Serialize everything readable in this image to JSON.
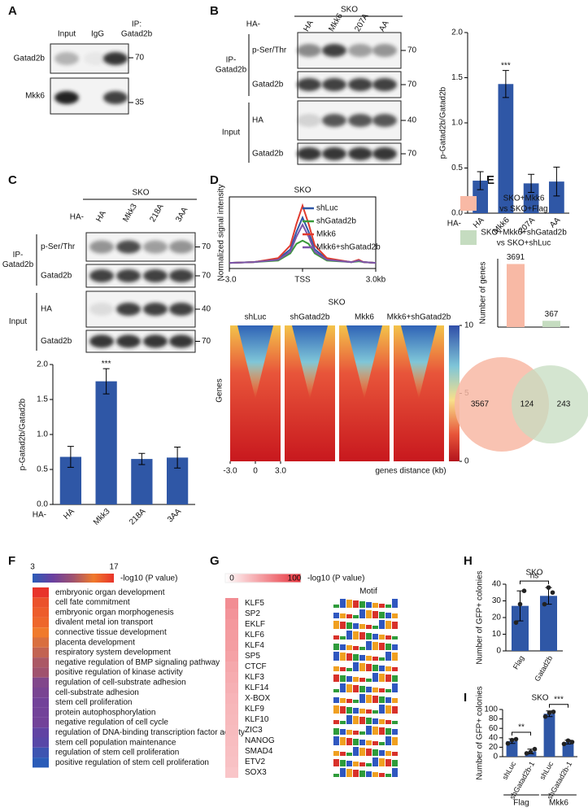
{
  "panel_labels": [
    "A",
    "B",
    "C",
    "D",
    "E",
    "F",
    "G",
    "H",
    "I"
  ],
  "blot_a": {
    "lanes": [
      "Input",
      "IgG"
    ],
    "ip_label": [
      "IP:",
      "Gatad2b"
    ],
    "rows": [
      "Gatad2b",
      "Mkk6"
    ],
    "markers": [
      70,
      35
    ]
  },
  "blot_b": {
    "prefix": "HA-",
    "group": "SKO",
    "lanes": [
      "HA",
      "Mkk6",
      "207A",
      "AA"
    ],
    "sections": [
      {
        "name": [
          "IP-",
          "Gatad2b"
        ],
        "rows": [
          "p-Ser/Thr",
          "Gatad2b"
        ]
      },
      {
        "name": [
          "Input"
        ],
        "rows": [
          "HA",
          "Gatad2b"
        ]
      }
    ],
    "markers": [
      70,
      70,
      40,
      70
    ]
  },
  "blot_c": {
    "prefix": "HA-",
    "group": "SKO",
    "lanes": [
      "HA",
      "Mkk3",
      "218A",
      "3AA"
    ],
    "sections": [
      {
        "name": [
          "IP-",
          "Gatad2b"
        ],
        "rows": [
          "p-Ser/Thr",
          "Gatad2b"
        ]
      },
      {
        "name": [
          "Input"
        ],
        "rows": [
          "HA",
          "Gatad2b"
        ]
      }
    ],
    "markers": [
      70,
      70,
      40,
      70
    ]
  },
  "chart_data": [
    {
      "type": "bar",
      "ylabel": "p-Gatad2b/Gatad2b",
      "x_prefix": "HA-",
      "categories": [
        "HA",
        "Mkk6",
        "207A",
        "AA"
      ],
      "values": [
        0.36,
        1.43,
        0.33,
        0.35
      ],
      "errors": [
        0.1,
        0.15,
        0.1,
        0.16
      ],
      "significance": [
        null,
        "***",
        null,
        null
      ],
      "color": "#2f57a6",
      "ylim": [
        0,
        2
      ],
      "yticks": [
        {
          "value": 0,
          "label": "0.0"
        },
        {
          "value": 0.5,
          "label": "0.5"
        },
        {
          "value": 1,
          "label": "1.0"
        },
        {
          "value": 1.5,
          "label": "1.5"
        },
        {
          "value": 2,
          "label": "2.0"
        }
      ]
    },
    {
      "type": "bar",
      "ylabel": "p-Gatad2b/Gatad2b",
      "x_prefix": "HA-",
      "categories": [
        "HA",
        "Mkk3",
        "218A",
        "3AA"
      ],
      "values": [
        0.68,
        1.76,
        0.65,
        0.67
      ],
      "errors": [
        0.15,
        0.18,
        0.08,
        0.15
      ],
      "significance": [
        null,
        "***",
        null,
        null
      ],
      "color": "#2f57a6",
      "ylim": [
        0,
        2
      ],
      "yticks": [
        {
          "value": 0,
          "label": "0.0"
        },
        {
          "value": 0.5,
          "label": "0.5"
        },
        {
          "value": 1,
          "label": "1.0"
        },
        {
          "value": 1.5,
          "label": "1.5"
        },
        {
          "value": 2,
          "label": "2.0"
        }
      ]
    },
    {
      "type": "line",
      "title": "SKO",
      "ylabel": "Normalized signal intensity",
      "x": [
        -3,
        -2,
        -1,
        -0.5,
        -0.25,
        0,
        0.25,
        0.5,
        1,
        2,
        2.3,
        2.5,
        3
      ],
      "xlim": [
        -3,
        3
      ],
      "xticks": [
        {
          "value": -3,
          "label": "-3.0"
        },
        {
          "value": 0,
          "label": "TSS"
        },
        {
          "value": 3,
          "label": "3.0kb"
        }
      ],
      "ylim": [
        1.5,
        10.5
      ],
      "legend": "upper right",
      "series": [
        {
          "name": "shLuc",
          "color": "#2f57a6",
          "values": [
            2.2,
            2.3,
            2.7,
            3.9,
            6.1,
            7.9,
            6.1,
            3.9,
            2.7,
            2.3,
            2.5,
            2.3,
            2.2
          ]
        },
        {
          "name": "shGatad2b",
          "color": "#3a9a3a",
          "values": [
            2.2,
            2.3,
            2.5,
            3.4,
            4.6,
            5.0,
            4.6,
            3.4,
            2.5,
            2.3,
            2.4,
            2.3,
            2.2
          ]
        },
        {
          "name": "Mkk6",
          "color": "#e03a2e",
          "values": [
            2.2,
            2.3,
            2.8,
            4.4,
            7.1,
            9.4,
            7.1,
            4.4,
            2.8,
            2.3,
            2.6,
            2.3,
            2.2
          ]
        },
        {
          "name": "Mkk6+shGatad2b",
          "color": "#7a55a8",
          "values": [
            2.2,
            2.3,
            2.6,
            3.6,
            5.5,
            7.0,
            5.5,
            3.6,
            2.6,
            2.3,
            2.5,
            2.3,
            2.2
          ]
        }
      ]
    },
    {
      "type": "bar",
      "ylabel": "Number of genes",
      "categories": [
        null,
        null
      ],
      "values": [
        3691,
        367
      ],
      "colors": [
        "#f8b9a5",
        "#c5dcc0"
      ],
      "show_values": true,
      "ylim": [
        0,
        4000
      ],
      "legend_entries": [
        [
          "SKO+Mkk6",
          "vs SKO+Flag"
        ],
        [
          "SKO+Mkk6+shGatad2b",
          "vs SKO+shLuc"
        ]
      ]
    },
    {
      "type": "bar",
      "title": "SKO",
      "ylabel": "Number of GFP+ colonies",
      "categories": [
        "Flag",
        "Gatad2b"
      ],
      "values": [
        27,
        33
      ],
      "errors": [
        9,
        5
      ],
      "points": [
        [
          17,
          28,
          36
        ],
        [
          28,
          38,
          35
        ]
      ],
      "significance": [
        null,
        "ns"
      ],
      "significance_brackets": true,
      "color": "#2f57a6",
      "ylim": [
        0,
        40
      ],
      "yticks": [
        0,
        10,
        20,
        30,
        40
      ]
    },
    {
      "type": "bar",
      "title": "SKO",
      "ylabel": "Number of GFP+ colonies",
      "categories": [
        "shLuc",
        "shGatad2b-1",
        "shLuc",
        "shGatad2b-1"
      ],
      "values": [
        33,
        11,
        91,
        31
      ],
      "errors": [
        5,
        5,
        6,
        4
      ],
      "points": [
        [
          28,
          35,
          37
        ],
        [
          7,
          10,
          16
        ],
        [
          85,
          93,
          95
        ],
        [
          27,
          34,
          31
        ]
      ],
      "significance": [
        null,
        "**",
        null,
        "***"
      ],
      "significance_brackets": true,
      "groups": [
        "Flag",
        "Mkk6"
      ],
      "color": "#2f57a6",
      "ylim": [
        0,
        100
      ],
      "yticks": [
        0,
        20,
        40,
        60,
        80,
        100
      ]
    }
  ],
  "heatmap": {
    "title": "SKO",
    "columns": [
      "shLuc",
      "shGatad2b",
      "Mkk6",
      "Mkk6+shGatad2b"
    ],
    "ylabel": "Genes",
    "xticks": [
      {
        "value": -3,
        "label": "-3.0"
      },
      0,
      {
        "value": 3,
        "label": "3.0"
      }
    ],
    "xlabel": "genes distance (kb)",
    "colorbar_ticks": [
      0,
      5,
      10
    ]
  },
  "venn": {
    "values": [
      3567,
      124,
      243
    ],
    "colors": [
      "#f8b9a5",
      "#c5dcc0"
    ]
  },
  "go_terms": {
    "colorbar_ticks": [
      3,
      17
    ],
    "colorbar_label": "-log10 (P value)",
    "colors": [
      "#2b5cb8",
      "#6a3fa0",
      "#a0526e",
      "#f07a2c",
      "#e8332a"
    ],
    "terms": [
      {
        "name": "embryonic organ development",
        "value": 17
      },
      {
        "name": "cell fate commitment",
        "value": 15.5
      },
      {
        "name": "embryonic organ morphogenesis",
        "value": 15
      },
      {
        "name": "divalent metal ion transport",
        "value": 14.5
      },
      {
        "name": "connective tissue development",
        "value": 13.5
      },
      {
        "name": "placenta development",
        "value": 12.5
      },
      {
        "name": "respiratory system development",
        "value": 11.5
      },
      {
        "name": "negative regulation of BMP signaling pathway",
        "value": 10.5
      },
      {
        "name": "positive regulation of kinase activity",
        "value": 10
      },
      {
        "name": "regulation of cell-substrate adhesion",
        "value": 8
      },
      {
        "name": "cell-substrate adhesion",
        "value": 7.5
      },
      {
        "name": "stem cell proliferation",
        "value": 7
      },
      {
        "name": "protein autophosphorylation",
        "value": 7
      },
      {
        "name": "negative regulation of cell cycle",
        "value": 7
      },
      {
        "name": "regulation of DNA-binding transcription factor activity",
        "value": 6
      },
      {
        "name": "stem cell population maintenance",
        "value": 5.5
      },
      {
        "name": "regulation of stem cell proliferation",
        "value": 4
      },
      {
        "name": "positive regulation of stem cell proliferation",
        "value": 3
      }
    ]
  },
  "motifs": {
    "colorbar_ticks": [
      0,
      100
    ],
    "colorbar_label": "-log10 (P value)",
    "header": "Motif",
    "colors": [
      "#ffffff",
      "#e8303a"
    ],
    "motifs": [
      {
        "name": "KLF5",
        "value": 55
      },
      {
        "name": "SP2",
        "value": 52
      },
      {
        "name": "EKLF",
        "value": 50
      },
      {
        "name": "KLF6",
        "value": 48
      },
      {
        "name": "KLF4",
        "value": 47
      },
      {
        "name": "SP5",
        "value": 45
      },
      {
        "name": "CTCF",
        "value": 42
      },
      {
        "name": "KLF3",
        "value": 40
      },
      {
        "name": "KLF14",
        "value": 38
      },
      {
        "name": "X-BOX",
        "value": 36
      },
      {
        "name": "KLF9",
        "value": 35
      },
      {
        "name": "KLF10",
        "value": 34
      },
      {
        "name": "ZIC3",
        "value": 33
      },
      {
        "name": "NANOG",
        "value": 32
      },
      {
        "name": "SMAD4",
        "value": 31
      },
      {
        "name": "ETV2",
        "value": 30
      },
      {
        "name": "SOX3",
        "value": 28
      }
    ]
  }
}
